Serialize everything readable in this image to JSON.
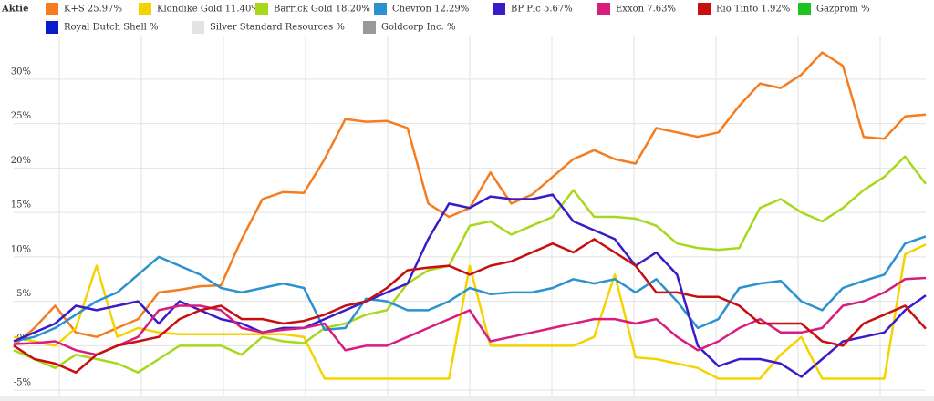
{
  "chart_data": {
    "type": "line",
    "legend_title": "Aktie",
    "categories": [
      null,
      null,
      null,
      null,
      null,
      null,
      null,
      null,
      null,
      null,
      null,
      null,
      null,
      null,
      null,
      null,
      null,
      null,
      null,
      null,
      null,
      null,
      null,
      null,
      null,
      null,
      null,
      null,
      null,
      null,
      null,
      null,
      null,
      null,
      null,
      null,
      null,
      null,
      null,
      null,
      null,
      null,
      null,
      null,
      null
    ],
    "ylim": [
      -5.7,
      34.8
    ],
    "yticks": [
      {
        "value": -5,
        "label": "-5%"
      },
      {
        "value": 0,
        "label": "0%"
      },
      {
        "value": 5,
        "label": "5%"
      },
      {
        "value": 10,
        "label": "10%"
      },
      {
        "value": 15,
        "label": "15%"
      },
      {
        "value": 20,
        "label": "20%"
      },
      {
        "value": 25,
        "label": "25%"
      },
      {
        "value": 30,
        "label": "30%"
      }
    ],
    "grid": true,
    "series": [
      {
        "name": "K+S  25.97%",
        "color": "#f57c1f",
        "values": [
          0,
          2,
          4.5,
          1.5,
          1,
          2,
          3,
          6,
          6.3,
          6.7,
          6.8,
          12,
          16.5,
          17.3,
          17.2,
          21,
          25.5,
          25.2,
          25.3,
          24.5,
          16,
          14.5,
          15.5,
          19.5,
          16,
          17,
          19,
          21,
          22,
          21,
          20.5,
          24.5,
          24,
          23.5,
          24,
          27,
          29.5,
          29,
          30.5,
          33,
          31.5,
          23.5,
          23.3,
          25.8,
          26
        ]
      },
      {
        "name": "Klondike Gold  11.40%",
        "color": "#f5d300",
        "values": [
          1,
          0.5,
          0,
          2,
          9,
          1,
          2,
          1.5,
          1.3,
          1.3,
          1.3,
          1.3,
          1.3,
          1.3,
          1,
          -3.7,
          -3.7,
          -3.7,
          -3.7,
          -3.7,
          -3.7,
          -3.7,
          9,
          0,
          0,
          0,
          0,
          0,
          1,
          8,
          -1.3,
          -1.5,
          -2,
          -2.5,
          -3.7,
          -3.7,
          -3.7,
          -1,
          1,
          -3.7,
          -3.7,
          -3.7,
          -3.7,
          10.3,
          11.4
        ]
      },
      {
        "name": "Barrick Gold  18.20%",
        "color": "#a8d81c",
        "values": [
          -0.5,
          -1.5,
          -2.5,
          -1,
          -1.5,
          -2,
          -3,
          -1.5,
          0,
          0,
          0,
          -1,
          1,
          0.5,
          0.3,
          2,
          2.5,
          3.5,
          4,
          7,
          8.5,
          9,
          13.5,
          14,
          12.5,
          13.5,
          14.5,
          17.5,
          14.5,
          14.5,
          14.3,
          13.5,
          11.5,
          11,
          10.8,
          11,
          15.5,
          16.5,
          15,
          14,
          15.5,
          17.5,
          19,
          21.3,
          18.2
        ]
      },
      {
        "name": "Chevron  12.29%",
        "color": "#2a92cf",
        "values": [
          0.5,
          1,
          2,
          3.5,
          5,
          6,
          8,
          10,
          9,
          8,
          6.5,
          6,
          6.5,
          7,
          6.5,
          1.8,
          2,
          5.3,
          5,
          4,
          4,
          5,
          6.5,
          5.8,
          6,
          6,
          6.5,
          7.5,
          7,
          7.5,
          6,
          7.5,
          5,
          2,
          3,
          6.5,
          7,
          7.3,
          5,
          4,
          6.5,
          7.3,
          8,
          11.5,
          12.3
        ]
      },
      {
        "name": "BP Plc  5.67%",
        "color": "#3a1bc8",
        "values": [
          0.5,
          1.5,
          2.5,
          4.5,
          4,
          4.5,
          5,
          2.5,
          5,
          4,
          3,
          2.5,
          1.5,
          2,
          2,
          3,
          4,
          5,
          6,
          7,
          12,
          16,
          15.5,
          16.8,
          16.5,
          16.5,
          17,
          14,
          13,
          12,
          9,
          10.5,
          8,
          0,
          -2.3,
          -1.5,
          -1.5,
          -2,
          -3.5,
          -1.5,
          0.5,
          1,
          1.5,
          4,
          5.67
        ]
      },
      {
        "name": "Exxon  7.63%",
        "color": "#d81d7e",
        "values": [
          0.2,
          0.3,
          0.5,
          -0.5,
          -1,
          0,
          1,
          4,
          4.5,
          4.5,
          4,
          2,
          1.5,
          1.8,
          2,
          2.5,
          -0.5,
          0,
          0,
          1,
          2,
          3,
          4,
          0.5,
          1,
          1.5,
          2,
          2.5,
          3,
          3,
          2.5,
          3,
          1,
          -0.5,
          0.5,
          2,
          3,
          1.5,
          1.5,
          2,
          4.5,
          5,
          6,
          7.5,
          7.63
        ]
      },
      {
        "name": "Rio Tinto  1.92%",
        "color": "#c80f0f",
        "values": [
          0,
          -1.5,
          -2,
          -3,
          -1,
          0,
          0.5,
          1,
          3,
          4,
          4.5,
          3,
          3,
          2.5,
          2.8,
          3.5,
          4.5,
          5,
          6.5,
          8.5,
          8.8,
          9,
          8,
          9,
          9.5,
          10.5,
          11.5,
          10.5,
          12,
          10.5,
          9,
          6,
          6,
          5.5,
          5.5,
          4.5,
          2.5,
          2.5,
          2.5,
          0.5,
          0,
          2.5,
          3.5,
          4.5,
          1.92
        ]
      },
      {
        "name": "Gazprom  %",
        "color": "#1dc41d",
        "values": [
          null,
          null,
          null,
          null,
          null,
          null,
          null,
          null,
          null,
          null,
          null,
          null,
          null,
          null,
          null,
          null,
          null,
          null,
          null,
          null,
          null,
          null,
          null,
          null,
          null,
          null,
          null,
          null,
          null,
          null,
          null,
          null,
          null,
          null,
          null,
          null,
          null,
          null,
          null,
          null,
          null,
          null,
          null,
          null,
          null
        ]
      },
      {
        "name": "Royal Dutch Shell  %",
        "color": "#0a1cc8",
        "values": [
          null,
          null,
          null,
          null,
          null,
          null,
          null,
          null,
          null,
          null,
          null,
          null,
          null,
          null,
          null,
          null,
          null,
          null,
          null,
          null,
          null,
          null,
          null,
          null,
          null,
          null,
          null,
          null,
          null,
          null,
          null,
          null,
          null,
          null,
          null,
          null,
          null,
          null,
          null,
          null,
          null,
          null,
          null,
          null,
          null
        ]
      },
      {
        "name": "Silver Standard Resources  %",
        "color": "#e3e3e3",
        "values": [
          null,
          null,
          null,
          null,
          null,
          null,
          null,
          null,
          null,
          null,
          null,
          null,
          null,
          null,
          null,
          null,
          null,
          null,
          null,
          null,
          null,
          null,
          null,
          null,
          null,
          null,
          null,
          null,
          null,
          null,
          null,
          null,
          null,
          null,
          null,
          null,
          null,
          null,
          null,
          null,
          null,
          null,
          null,
          null,
          null
        ]
      },
      {
        "name": "Goldcorp Inc.  %",
        "color": "#999999",
        "values": [
          null,
          null,
          null,
          null,
          null,
          null,
          null,
          null,
          null,
          null,
          null,
          null,
          null,
          null,
          null,
          null,
          null,
          null,
          null,
          null,
          null,
          null,
          null,
          null,
          null,
          null,
          null,
          null,
          null,
          null,
          null,
          null,
          null,
          null,
          null,
          null,
          null,
          null,
          null,
          null,
          null,
          null,
          null,
          null,
          null
        ]
      }
    ]
  }
}
